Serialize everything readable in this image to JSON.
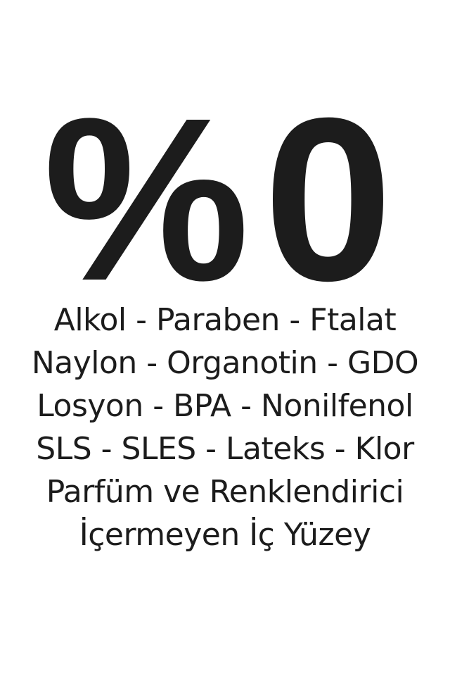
{
  "headline": "%0",
  "lines": [
    "Alkol - Paraben - Ftalat",
    "Naylon - Organotin - GDO",
    "Losyon - BPA - Nonilfenol",
    "SLS - SLES - Lateks - Klor",
    "Parfüm ve Renklendirici",
    "İçermeyen İç Yüzey"
  ],
  "colors": {
    "text": "#1c1c1c",
    "background": "#ffffff"
  }
}
